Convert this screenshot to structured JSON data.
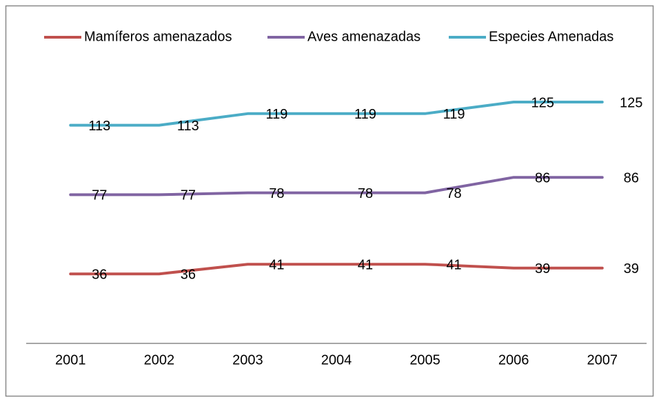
{
  "chart_data": {
    "type": "line",
    "categories": [
      "2001",
      "2002",
      "2003",
      "2004",
      "2005",
      "2006",
      "2007"
    ],
    "series": [
      {
        "name": "Mamíferos amenazados",
        "color": "#c0504d",
        "values": [
          36,
          36,
          41,
          41,
          41,
          39,
          39
        ]
      },
      {
        "name": "Aves amenazadas",
        "color": "#8064a2",
        "values": [
          77,
          77,
          78,
          78,
          78,
          86,
          86
        ]
      },
      {
        "name": "Especies Amenadas",
        "color": "#4bacc6",
        "values": [
          113,
          113,
          119,
          119,
          119,
          125,
          125
        ]
      }
    ],
    "ylim": [
      0,
      140
    ],
    "legend": "top"
  }
}
